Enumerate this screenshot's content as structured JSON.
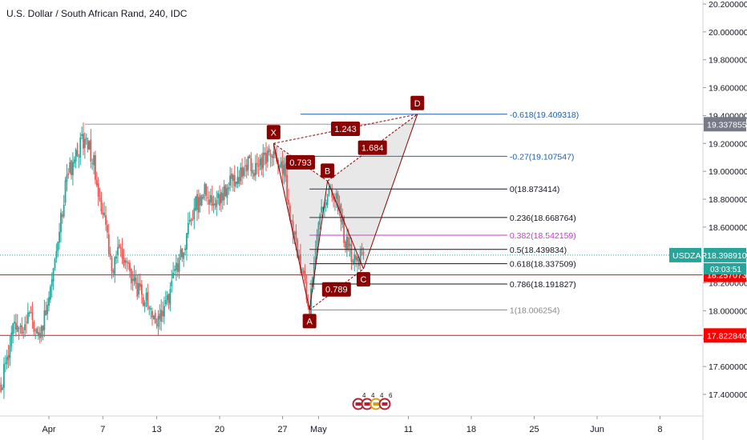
{
  "header": {
    "title": "U.S. Dollar / South African Rand, 240, IDC"
  },
  "colors": {
    "candle_up": "#26a69a",
    "candle_down": "#ef5350",
    "pattern": "#8b0000",
    "fib_blue": "#1f5fa8",
    "fib_black": "#131722",
    "fib_pink": "#c43bcc",
    "fib_grey": "#888888",
    "level_red": "#ff0000",
    "price_tag": "#26a69a",
    "last_tag": "#787b86"
  },
  "chart_data": {
    "type": "candlestick",
    "symbol": "USDZAR",
    "interval": "240",
    "x_axis": {
      "tick_labels": [
        "Apr",
        "7",
        "13",
        "20",
        "27",
        "May",
        "11",
        "18",
        "25",
        "Jun",
        "8"
      ],
      "tick_dates": [
        "2020-04-01",
        "2020-04-07",
        "2020-04-13",
        "2020-04-20",
        "2020-04-27",
        "2020-05-01",
        "2020-05-11",
        "2020-05-18",
        "2020-05-25",
        "2020-06-01",
        "2020-06-08"
      ],
      "range": [
        "2020-03-26",
        "2020-06-10"
      ]
    },
    "y_axis": {
      "tick_labels": [
        "20.200000",
        "20.000000",
        "19.800000",
        "19.600000",
        "19.400000",
        "19.200000",
        "19.000000",
        "18.800000",
        "18.600000",
        "18.400000",
        "18.200000",
        "18.000000",
        "17.800000",
        "17.600000",
        "17.400000"
      ],
      "range": [
        17.28,
        20.22
      ]
    },
    "price_path": [
      [
        "2020-03-26",
        17.35
      ],
      [
        "2020-03-27",
        17.55
      ],
      [
        "2020-03-28",
        17.85
      ],
      [
        "2020-03-30",
        17.95
      ],
      [
        "2020-03-31",
        17.85
      ],
      [
        "2020-04-01",
        18.05
      ],
      [
        "2020-04-02",
        18.5
      ],
      [
        "2020-04-03",
        18.95
      ],
      [
        "2020-04-05",
        19.25
      ],
      [
        "2020-04-06",
        19.05
      ],
      [
        "2020-04-07",
        18.7
      ],
      [
        "2020-04-08",
        18.3
      ],
      [
        "2020-04-09",
        18.45
      ],
      [
        "2020-04-10",
        18.25
      ],
      [
        "2020-04-12",
        18.05
      ],
      [
        "2020-04-13",
        17.92
      ],
      [
        "2020-04-14",
        18.05
      ],
      [
        "2020-04-15",
        18.25
      ],
      [
        "2020-04-16",
        18.45
      ],
      [
        "2020-04-17",
        18.7
      ],
      [
        "2020-04-18",
        18.85
      ],
      [
        "2020-04-20",
        18.8
      ],
      [
        "2020-04-21",
        18.9
      ],
      [
        "2020-04-22",
        18.95
      ],
      [
        "2020-04-23",
        19.05
      ],
      [
        "2020-04-24",
        19.02
      ],
      [
        "2020-04-25",
        19.1
      ],
      [
        "2020-04-26",
        19.15
      ],
      [
        "2020-04-27",
        19.05
      ],
      [
        "2020-04-28",
        18.65
      ],
      [
        "2020-04-29",
        18.3
      ],
      [
        "2020-04-30",
        18.01
      ],
      [
        "2020-05-01",
        18.6
      ],
      [
        "2020-05-02",
        18.89
      ],
      [
        "2020-05-03",
        18.8
      ],
      [
        "2020-05-04",
        18.5
      ],
      [
        "2020-05-05",
        18.35
      ],
      [
        "2020-05-06",
        18.4
      ]
    ],
    "harmonic_pattern": {
      "points": [
        {
          "label": "X",
          "date": "2020-04-26",
          "price": 19.2
        },
        {
          "label": "A",
          "date": "2020-04-30",
          "price": 18.006254
        },
        {
          "label": "B",
          "date": "2020-05-02",
          "price": 18.93
        },
        {
          "label": "C",
          "date": "2020-05-06",
          "price": 18.3
        },
        {
          "label": "D",
          "date": "2020-05-12",
          "price": 19.409318
        }
      ],
      "ratios": [
        {
          "label": "0.793",
          "between": "X-B"
        },
        {
          "label": "0.789",
          "between": "A-C"
        },
        {
          "label": "1.684",
          "between": "B-D"
        },
        {
          "label": "1.243",
          "between": "X-D"
        }
      ]
    },
    "fibonacci_levels": [
      {
        "label": "-0.618(19.409318)",
        "price": 19.409318,
        "color": "blue"
      },
      {
        "label": "-0.27(19.107547)",
        "price": 19.107547,
        "color": "blue"
      },
      {
        "label": "0(18.873414)",
        "price": 18.873414,
        "color": "black"
      },
      {
        "label": "0.236(18.668764)",
        "price": 18.668764,
        "color": "black"
      },
      {
        "label": "0.382(18.542159)",
        "price": 18.542159,
        "color": "pink"
      },
      {
        "label": "0.5(18.439834)",
        "price": 18.439834,
        "color": "black"
      },
      {
        "label": "0.618(18.337509)",
        "price": 18.337509,
        "color": "black"
      },
      {
        "label": "0.786(18.191827)",
        "price": 18.191827,
        "color": "black"
      },
      {
        "label": "1(18.006254)",
        "price": 18.006254,
        "color": "grey"
      }
    ],
    "horizontal_levels": [
      {
        "price": 19.337855,
        "label": "19.337855",
        "style": "grey"
      },
      {
        "price": 18.257073,
        "label": "18.257073",
        "style": "red"
      },
      {
        "price": 17.82284,
        "label": "17.822840",
        "style": "red"
      }
    ],
    "current_price": {
      "symbol": "USDZAR",
      "price": 18.39891,
      "label": "18.398910",
      "countdown": "03:03:51"
    },
    "event_icons": [
      {
        "flag": "US",
        "count": "4"
      },
      {
        "flag": "US",
        "count": "4"
      },
      {
        "flag": "DE",
        "count": "4"
      },
      {
        "flag": "US",
        "count": "6"
      }
    ]
  }
}
